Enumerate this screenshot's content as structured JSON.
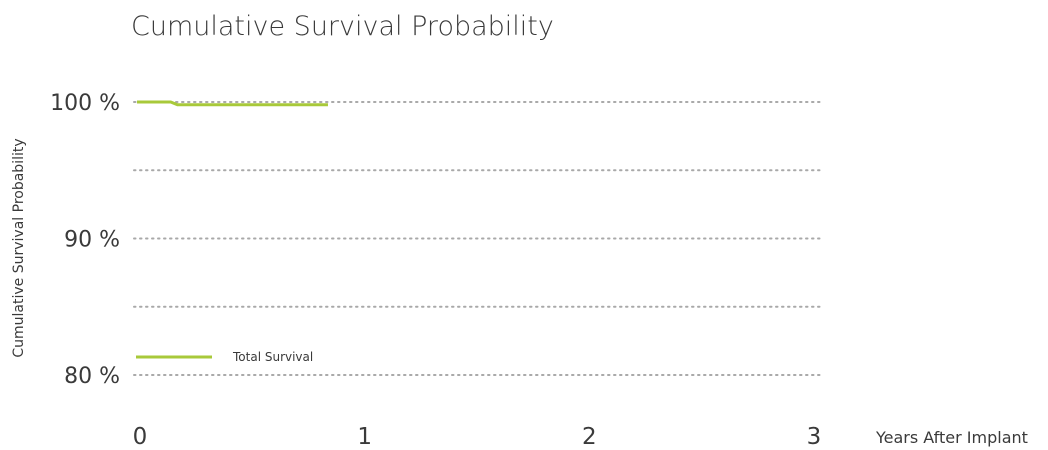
{
  "chart_data": {
    "type": "line",
    "title": "Cumulative Survival Probability",
    "xlabel": "Years After Implant",
    "ylabel": "Cumulative Survival Probability",
    "xlim": [
      0,
      3
    ],
    "ylim": [
      80,
      100
    ],
    "x_ticks": [
      0,
      1,
      2,
      3
    ],
    "x_tick_labels": [
      "0",
      "1",
      "2",
      "3"
    ],
    "y_ticks": [
      80,
      90,
      100
    ],
    "y_tick_labels": [
      "80 %",
      "90 %",
      "100 %"
    ],
    "gridlines_y": [
      80,
      85,
      90,
      95,
      100
    ],
    "grid": "dotted horizontal",
    "legend_position": "bottom-left",
    "series": [
      {
        "name": "Total Survival",
        "color": "#a8c93a",
        "points": [
          {
            "x": 0,
            "y": 100
          },
          {
            "x": 0.15,
            "y": 100
          },
          {
            "x": 0.18,
            "y": 99.8
          },
          {
            "x": 0.85,
            "y": 99.8
          }
        ]
      }
    ]
  }
}
